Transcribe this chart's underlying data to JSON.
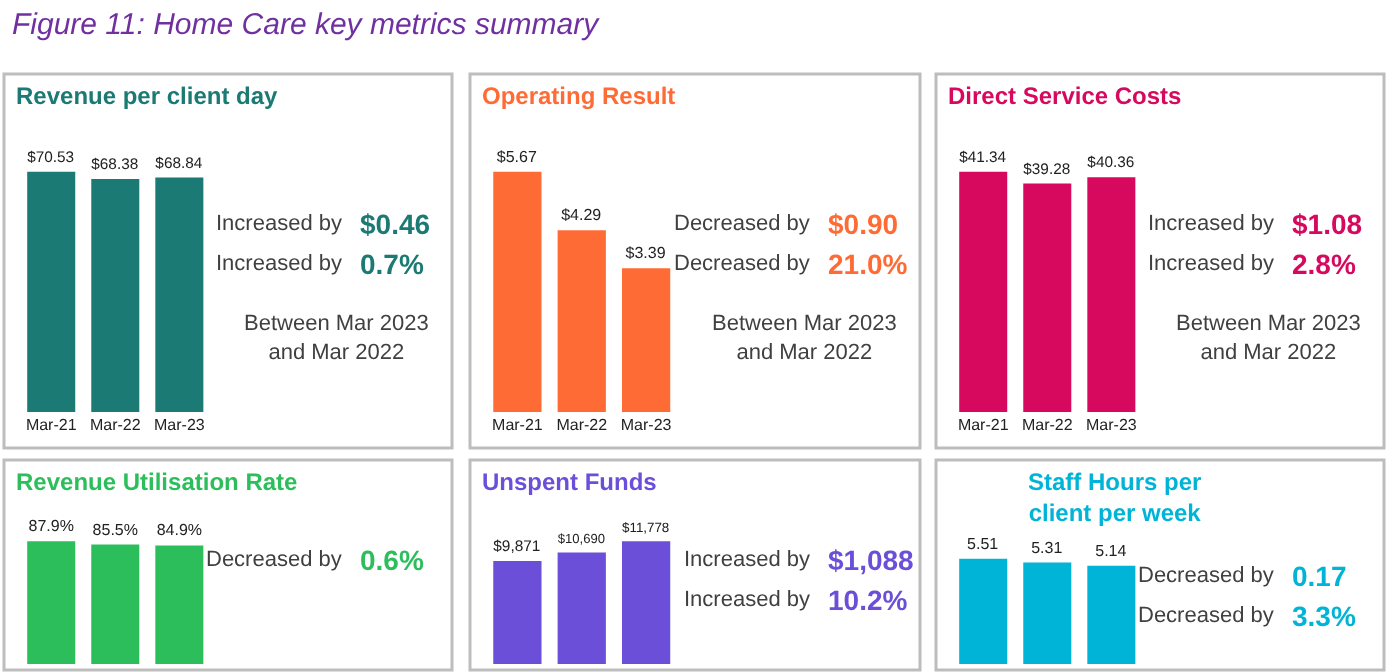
{
  "chart_data": [
    {
      "type": "other",
      "title": "Figure 11: Home Care key metrics summary"
    },
    {
      "type": "bar",
      "title": "Revenue per client day",
      "categories": [
        "Mar-21",
        "Mar-22",
        "Mar-23"
      ],
      "values": [
        70.53,
        68.38,
        68.84
      ],
      "value_labels": [
        "$70.53",
        "$68.38",
        "$68.84"
      ],
      "color": "#1b7a73",
      "annotations": [
        "Increased by",
        "$0.46",
        "Increased by",
        "0.7%",
        "Between Mar 2023 and Mar 2022"
      ]
    },
    {
      "type": "bar",
      "title": "Operating Result",
      "categories": [
        "Mar-21",
        "Mar-22",
        "Mar-23"
      ],
      "values": [
        5.67,
        4.29,
        3.39
      ],
      "value_labels": [
        "$5.67",
        "$4.29",
        "$3.39"
      ],
      "color": "#ff6b35",
      "annotations": [
        "Decreased by",
        "$0.90",
        "Decreased by",
        "21.0%",
        "Between Mar 2023 and Mar 2022"
      ]
    },
    {
      "type": "bar",
      "title": "Direct Service Costs",
      "categories": [
        "Mar-21",
        "Mar-22",
        "Mar-23"
      ],
      "values": [
        41.34,
        39.28,
        40.36
      ],
      "value_labels": [
        "$41.34",
        "$39.28",
        "$40.36"
      ],
      "color": "#d6095f",
      "annotations": [
        "Increased by",
        "$1.08",
        "Increased by",
        "2.8%",
        "Between Mar 2023 and Mar 2022"
      ]
    },
    {
      "type": "bar",
      "title": "Revenue Utilisation Rate",
      "categories": [
        null,
        null,
        null
      ],
      "values": [
        87.9,
        85.5,
        84.9
      ],
      "value_labels": [
        "87.9%",
        "85.5%",
        "84.9%"
      ],
      "color": "#2dbe5c",
      "annotations": [
        "Decreased by",
        "0.6%"
      ]
    },
    {
      "type": "bar",
      "title": "Unspent Funds",
      "categories": [
        null,
        null,
        null
      ],
      "values": [
        9871,
        10690,
        11778
      ],
      "value_labels": [
        "$9,871",
        "$10,690",
        "$11,778"
      ],
      "color": "#6b4fd8",
      "annotations": [
        "Increased by",
        "$1,088",
        "Increased by",
        "10.2%"
      ]
    },
    {
      "type": "bar",
      "title": "Staff Hours per client per week",
      "categories": [
        null,
        null,
        null
      ],
      "values": [
        5.51,
        5.31,
        5.14
      ],
      "value_labels": [
        "5.51",
        "5.31",
        "5.14"
      ],
      "color": "#00b4d8",
      "annotations": [
        "Decreased by",
        "0.17",
        "Decreased by",
        "3.3%"
      ]
    }
  ]
}
